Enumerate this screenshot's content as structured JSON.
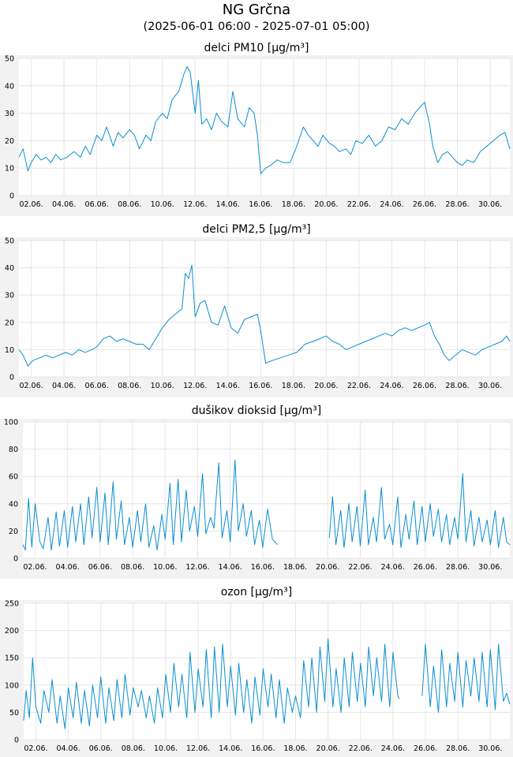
{
  "header": {
    "title": "NG Grčna",
    "subtitle": "(2025-06-01 06:00 - 2025-07-01 05:00)"
  },
  "colors": {
    "line": "#0a8ed0",
    "plot_bg": "#ffffff",
    "band_bg": "#f2f2f2",
    "grid": "#e6e6e6"
  },
  "x_ticks": [
    "02.06.",
    "04.06.",
    "06.06.",
    "08.06.",
    "10.06.",
    "12.06.",
    "14.06.",
    "16.06.",
    "18.06.",
    "20.06.",
    "22.06.",
    "24.06.",
    "26.06.",
    "28.06.",
    "30.06."
  ],
  "chart_data": [
    {
      "type": "line",
      "title": "delci PM10 [µg/m³]",
      "x_unit": "day of June 2025",
      "xlim": [
        1.25,
        31.2
      ],
      "ylim": [
        0,
        50
      ],
      "yticks": [
        0,
        10,
        20,
        30,
        40,
        50
      ],
      "grid": true,
      "series": [
        {
          "x": [
            1.25,
            1.5,
            1.8,
            2.0,
            2.3,
            2.6,
            2.9,
            3.2,
            3.5,
            3.8,
            4.2,
            4.6,
            5.0,
            5.3,
            5.6,
            6.0,
            6.3,
            6.6,
            7.0,
            7.3,
            7.6,
            8.0,
            8.3,
            8.6,
            9.0,
            9.3,
            9.6,
            10.0,
            10.3,
            10.6,
            11.0,
            11.3,
            11.5,
            11.7,
            12.0,
            12.2,
            12.4,
            12.7,
            13.0,
            13.3,
            13.6,
            14.0,
            14.3,
            14.6,
            15.0,
            15.3,
            15.6,
            15.8,
            16.0,
            16.3,
            16.6,
            17.0,
            17.4,
            17.8,
            18.2,
            18.6,
            18.9,
            19.2,
            19.5,
            19.8,
            20.2,
            20.5,
            20.8,
            21.2,
            21.5,
            21.8,
            22.2,
            22.6,
            23.0,
            23.4,
            23.8,
            24.2,
            24.6,
            25.0,
            25.4,
            25.7,
            26.0,
            26.3,
            26.5,
            26.8,
            27.1,
            27.4,
            27.7,
            28.0,
            28.3,
            28.6,
            29.0,
            29.4,
            29.8,
            30.2,
            30.6,
            30.9,
            31.2
          ],
          "y": [
            14,
            17,
            9,
            12,
            15,
            13,
            14,
            12,
            15,
            13,
            14,
            16,
            14,
            18,
            15,
            22,
            20,
            25,
            18,
            23,
            21,
            24,
            22,
            17,
            22,
            20,
            27,
            30,
            28,
            35,
            38,
            44,
            47,
            45,
            30,
            42,
            26,
            28,
            24,
            30,
            27,
            25,
            38,
            28,
            25,
            32,
            30,
            22,
            8,
            10,
            11,
            13,
            12,
            12,
            18,
            25,
            22,
            20,
            18,
            22,
            19,
            18,
            16,
            17,
            15,
            20,
            19,
            22,
            18,
            20,
            25,
            24,
            28,
            26,
            30,
            32,
            34,
            26,
            18,
            12,
            15,
            16,
            14,
            12,
            11,
            13,
            12,
            16,
            18,
            20,
            22,
            23,
            17
          ]
        }
      ]
    },
    {
      "type": "line",
      "title": "delci PM2,5 [µg/m³]",
      "x_unit": "day of June 2025",
      "xlim": [
        1.25,
        31.2
      ],
      "ylim": [
        0,
        50
      ],
      "yticks": [
        0,
        10,
        20,
        30,
        40,
        50
      ],
      "grid": true,
      "series": [
        {
          "x": [
            1.25,
            1.5,
            1.8,
            2.1,
            2.5,
            2.9,
            3.3,
            3.7,
            4.1,
            4.5,
            4.9,
            5.3,
            5.7,
            6.0,
            6.4,
            6.8,
            7.2,
            7.6,
            8.0,
            8.4,
            8.8,
            9.2,
            9.6,
            10.0,
            10.4,
            10.8,
            11.2,
            11.4,
            11.6,
            11.8,
            12.0,
            12.3,
            12.6,
            13.0,
            13.4,
            13.8,
            14.2,
            14.6,
            15.0,
            15.4,
            15.8,
            16.0,
            16.3,
            16.7,
            17.2,
            17.7,
            18.2,
            18.7,
            19.2,
            19.6,
            20.0,
            20.4,
            20.8,
            21.2,
            21.6,
            22.0,
            22.4,
            22.8,
            23.2,
            23.6,
            24.0,
            24.4,
            24.8,
            25.2,
            25.6,
            26.0,
            26.3,
            26.6,
            26.9,
            27.2,
            27.5,
            27.9,
            28.3,
            28.7,
            29.1,
            29.5,
            29.9,
            30.3,
            30.7,
            31.0,
            31.2
          ],
          "y": [
            10,
            8,
            4,
            6,
            7,
            8,
            7,
            8,
            9,
            8,
            10,
            9,
            10,
            11,
            14,
            15,
            13,
            14,
            13,
            12,
            12,
            10,
            14,
            18,
            21,
            23,
            25,
            38,
            36,
            41,
            22,
            27,
            28,
            20,
            19,
            26,
            18,
            16,
            21,
            22,
            23,
            17,
            5,
            6,
            7,
            8,
            9,
            12,
            13,
            14,
            15,
            13,
            12,
            10,
            11,
            12,
            13,
            14,
            15,
            16,
            15,
            17,
            18,
            17,
            18,
            19,
            20,
            15,
            12,
            8,
            6,
            8,
            10,
            9,
            8,
            10,
            11,
            12,
            13,
            15,
            13
          ]
        }
      ]
    },
    {
      "type": "line",
      "title": "dušikov dioksid [µg/m³]",
      "x_unit": "day of June 2025",
      "xlim": [
        1.25,
        31.2
      ],
      "ylim": [
        0,
        100
      ],
      "yticks": [
        0,
        20,
        40,
        60,
        80,
        100
      ],
      "grid": true,
      "series": [
        {
          "x": [
            1.25,
            1.4,
            1.6,
            1.8,
            2.0,
            2.3,
            2.5,
            2.8,
            3.0,
            3.3,
            3.5,
            3.8,
            4.0,
            4.3,
            4.5,
            4.8,
            5.0,
            5.3,
            5.5,
            5.8,
            6.0,
            6.3,
            6.5,
            6.8,
            7.0,
            7.3,
            7.5,
            7.8,
            8.0,
            8.3,
            8.5,
            8.8,
            9.0,
            9.3,
            9.5,
            9.8,
            10.0,
            10.3,
            10.5,
            10.8,
            11.0,
            11.3,
            11.5,
            11.8,
            12.0,
            12.3,
            12.5,
            12.8,
            13.0,
            13.3,
            13.5,
            13.8,
            14.0,
            14.3,
            14.5,
            14.8,
            15.0,
            15.3,
            15.5,
            15.8,
            16.0,
            16.3,
            16.6,
            16.9
          ],
          "y": [
            10,
            6,
            44,
            8,
            40,
            12,
            7,
            30,
            6,
            34,
            9,
            35,
            8,
            38,
            12,
            40,
            10,
            45,
            15,
            52,
            12,
            48,
            10,
            56,
            14,
            42,
            10,
            30,
            8,
            35,
            12,
            40,
            8,
            24,
            6,
            32,
            14,
            55,
            10,
            58,
            12,
            50,
            20,
            38,
            16,
            62,
            18,
            30,
            22,
            70,
            15,
            35,
            12,
            72,
            20,
            40,
            16,
            35,
            10,
            28,
            8,
            36,
            14,
            10
          ]
        },
        {
          "x": [
            20.1,
            20.3,
            20.5,
            20.8,
            21.0,
            21.3,
            21.5,
            21.8,
            22.0,
            22.3,
            22.5,
            22.8,
            23.0,
            23.3,
            23.5,
            23.8,
            24.0,
            24.3,
            24.5,
            24.8,
            25.0,
            25.3,
            25.5,
            25.8,
            26.0,
            26.3,
            26.5,
            26.8,
            27.0,
            27.3,
            27.5,
            27.8,
            28.0,
            28.3,
            28.5,
            28.8,
            29.0,
            29.3,
            29.5,
            29.8,
            30.0,
            30.3,
            30.5,
            30.8,
            31.0,
            31.2
          ],
          "y": [
            15,
            45,
            10,
            35,
            8,
            40,
            12,
            38,
            9,
            50,
            10,
            30,
            12,
            52,
            14,
            25,
            10,
            45,
            8,
            32,
            14,
            42,
            10,
            38,
            12,
            40,
            16,
            36,
            12,
            32,
            10,
            30,
            14,
            62,
            12,
            35,
            9,
            30,
            12,
            28,
            10,
            35,
            8,
            30,
            12,
            10
          ]
        }
      ]
    },
    {
      "type": "line",
      "title": "ozon [µg/m³]",
      "x_unit": "day of June 2025",
      "xlim": [
        1.25,
        31.2
      ],
      "ylim": [
        0,
        250
      ],
      "yticks": [
        0,
        50,
        100,
        150,
        200,
        250
      ],
      "grid": true,
      "series": [
        {
          "x": [
            1.25,
            1.4,
            1.6,
            1.8,
            2.0,
            2.3,
            2.5,
            2.8,
            3.0,
            3.3,
            3.5,
            3.8,
            4.0,
            4.3,
            4.5,
            4.8,
            5.0,
            5.3,
            5.5,
            5.8,
            6.0,
            6.3,
            6.5,
            6.8,
            7.0,
            7.3,
            7.5,
            7.8,
            8.0,
            8.3,
            8.5,
            8.8,
            9.0,
            9.3,
            9.5,
            9.8,
            10.0,
            10.3,
            10.5,
            10.8,
            11.0,
            11.3,
            11.5,
            11.8,
            12.0,
            12.3,
            12.5,
            12.8,
            13.0,
            13.3,
            13.5,
            13.8,
            14.0,
            14.3,
            14.5,
            14.8,
            15.0,
            15.3,
            15.5,
            15.8,
            16.0,
            16.3,
            16.5,
            16.8,
            17.0,
            17.3,
            17.5,
            17.8,
            18.0,
            18.3,
            18.5,
            18.8,
            19.0,
            19.3,
            19.5,
            19.8,
            20.0,
            20.3,
            20.5,
            20.8,
            21.0,
            21.3,
            21.5,
            21.8,
            22.0,
            22.3,
            22.5,
            22.8,
            23.0,
            23.3,
            23.5,
            23.8,
            24.0,
            24.3,
            24.4
          ],
          "y": [
            35,
            90,
            40,
            150,
            60,
            30,
            90,
            50,
            110,
            30,
            80,
            20,
            95,
            40,
            105,
            30,
            90,
            25,
            100,
            40,
            115,
            30,
            95,
            35,
            110,
            40,
            120,
            45,
            95,
            60,
            90,
            40,
            80,
            30,
            95,
            40,
            120,
            50,
            140,
            60,
            120,
            40,
            160,
            50,
            130,
            60,
            165,
            40,
            170,
            50,
            175,
            60,
            135,
            45,
            140,
            50,
            110,
            30,
            115,
            45,
            130,
            60,
            120,
            40,
            110,
            30,
            95,
            50,
            80,
            40,
            145,
            60,
            150,
            50,
            170,
            70,
            185,
            60,
            130,
            50,
            150,
            60,
            160,
            70,
            140,
            60,
            170,
            80,
            150,
            70,
            175,
            60,
            160,
            80,
            75
          ]
        },
        {
          "x": [
            25.8,
            26.0,
            26.3,
            26.5,
            26.8,
            27.0,
            27.3,
            27.5,
            27.8,
            28.0,
            28.3,
            28.5,
            28.8,
            29.0,
            29.3,
            29.5,
            29.8,
            30.0,
            30.3,
            30.5,
            30.8,
            31.0,
            31.2
          ],
          "y": [
            80,
            175,
            60,
            135,
            50,
            165,
            60,
            140,
            70,
            160,
            60,
            145,
            80,
            150,
            70,
            160,
            60,
            165,
            55,
            175,
            70,
            85,
            65
          ]
        }
      ]
    }
  ]
}
